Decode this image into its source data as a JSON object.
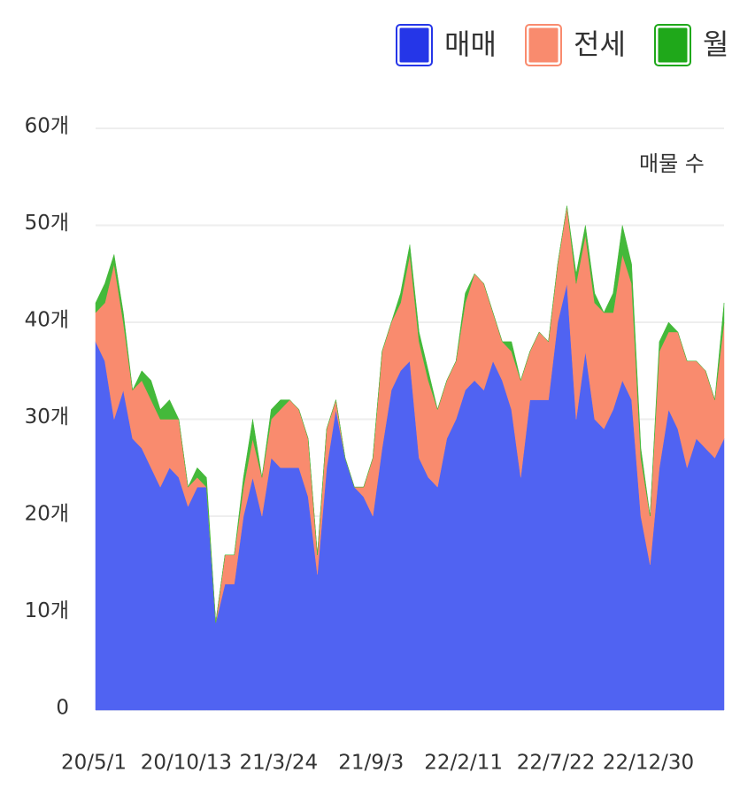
{
  "chart_data": {
    "type": "stacked-area",
    "annotation": "매물 수",
    "categories": [
      "20/5/1",
      null,
      null,
      null,
      null,
      null,
      null,
      null,
      null,
      null,
      "20/10/13",
      null,
      null,
      null,
      null,
      null,
      null,
      null,
      null,
      null,
      "21/3/24",
      null,
      null,
      null,
      null,
      null,
      null,
      null,
      null,
      null,
      "21/9/3",
      null,
      null,
      null,
      null,
      null,
      null,
      null,
      null,
      null,
      "22/2/11",
      null,
      null,
      null,
      null,
      null,
      null,
      null,
      null,
      null,
      "22/7/22",
      null,
      null,
      null,
      null,
      null,
      null,
      null,
      null,
      null,
      "22/12/30",
      null,
      null,
      null,
      null,
      null,
      null,
      null,
      null
    ],
    "series": [
      {
        "name": "매매",
        "color": "#5063f2",
        "legend_color": "#2536e8",
        "values": [
          38,
          36,
          30,
          33,
          28,
          27,
          25,
          23,
          25,
          24,
          21,
          23,
          23,
          9,
          13,
          13,
          20,
          24,
          20,
          26,
          25,
          25,
          25,
          22,
          14,
          25,
          31,
          26,
          23,
          22,
          20,
          27,
          33,
          35,
          36,
          26,
          24,
          23,
          28,
          30,
          33,
          34,
          33,
          36,
          34,
          31,
          24,
          32,
          32,
          32,
          40,
          44,
          30,
          37,
          30,
          29,
          31,
          34,
          32,
          20,
          15,
          25,
          31,
          29,
          25,
          28,
          27,
          26,
          28
        ]
      },
      {
        "name": "전세",
        "color": "#f98b6e",
        "legend_color": "#f98b6e",
        "values": [
          3,
          6,
          16,
          7,
          5,
          7,
          7,
          7,
          5,
          6,
          2,
          1,
          0,
          0,
          3,
          3,
          3,
          4,
          4,
          4,
          6,
          7,
          6,
          6,
          2,
          4,
          1,
          0,
          0,
          1,
          6,
          10,
          7,
          7,
          11,
          12,
          10,
          8,
          6,
          6,
          9,
          11,
          11,
          5,
          4,
          6,
          10,
          5,
          7,
          6,
          6,
          8,
          14,
          12,
          12,
          12,
          10,
          13,
          12,
          6,
          5,
          12,
          8,
          10,
          11,
          8,
          8,
          6,
          12
        ]
      },
      {
        "name": "월",
        "color": "#44b93a",
        "legend_color": "#1fa81a",
        "values": [
          1,
          2,
          1,
          1,
          0,
          1,
          2,
          1,
          2,
          0,
          0,
          1,
          1,
          0,
          0,
          0,
          1,
          2,
          0,
          1,
          1,
          0,
          0,
          0,
          0,
          0,
          0,
          0,
          0,
          0,
          0,
          0,
          0,
          1,
          1,
          1,
          1,
          0,
          0,
          0,
          1,
          0,
          0,
          0,
          0,
          1,
          0,
          0,
          0,
          0,
          0,
          0,
          1,
          1,
          1,
          0,
          2,
          3,
          2,
          1,
          0,
          1,
          1,
          0,
          0,
          0,
          0,
          0,
          2
        ]
      }
    ],
    "ylim": [
      0,
      60
    ],
    "yticks": [
      0,
      {
        "value": 10,
        "label": "10개"
      },
      {
        "value": 20,
        "label": "20개"
      },
      {
        "value": 30,
        "label": "30개"
      },
      {
        "value": 40,
        "label": "40개"
      },
      {
        "value": 50,
        "label": "50개"
      },
      {
        "value": 60,
        "label": "60개"
      }
    ],
    "grid": true
  }
}
